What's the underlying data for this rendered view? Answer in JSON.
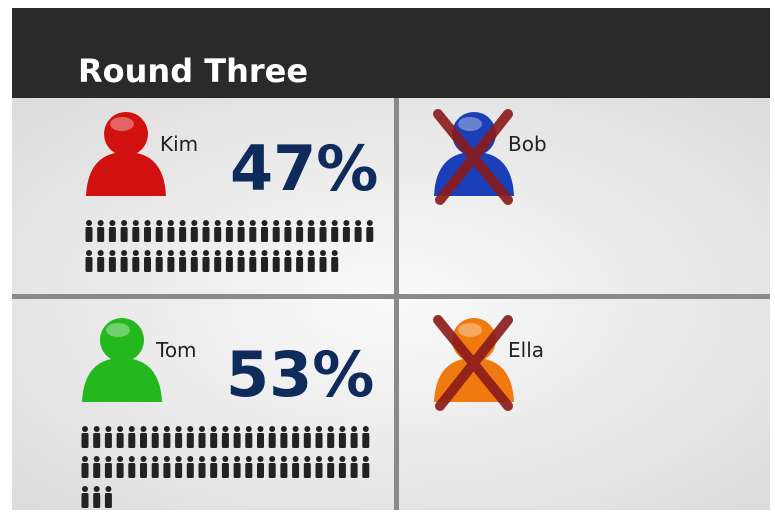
{
  "header": {
    "title": "Round Three"
  },
  "candidates": [
    {
      "name": "Kim",
      "color": "#d11010",
      "value": 47,
      "value_label": "47%",
      "eliminated": false
    },
    {
      "name": "Bob",
      "color": "#1a3fb8",
      "eliminated": true
    },
    {
      "name": "Tom",
      "color": "#22b81e",
      "value": 53,
      "value_label": "53%",
      "eliminated": false
    },
    {
      "name": "Ella",
      "color": "#f07a10",
      "eliminated": true
    }
  ]
}
